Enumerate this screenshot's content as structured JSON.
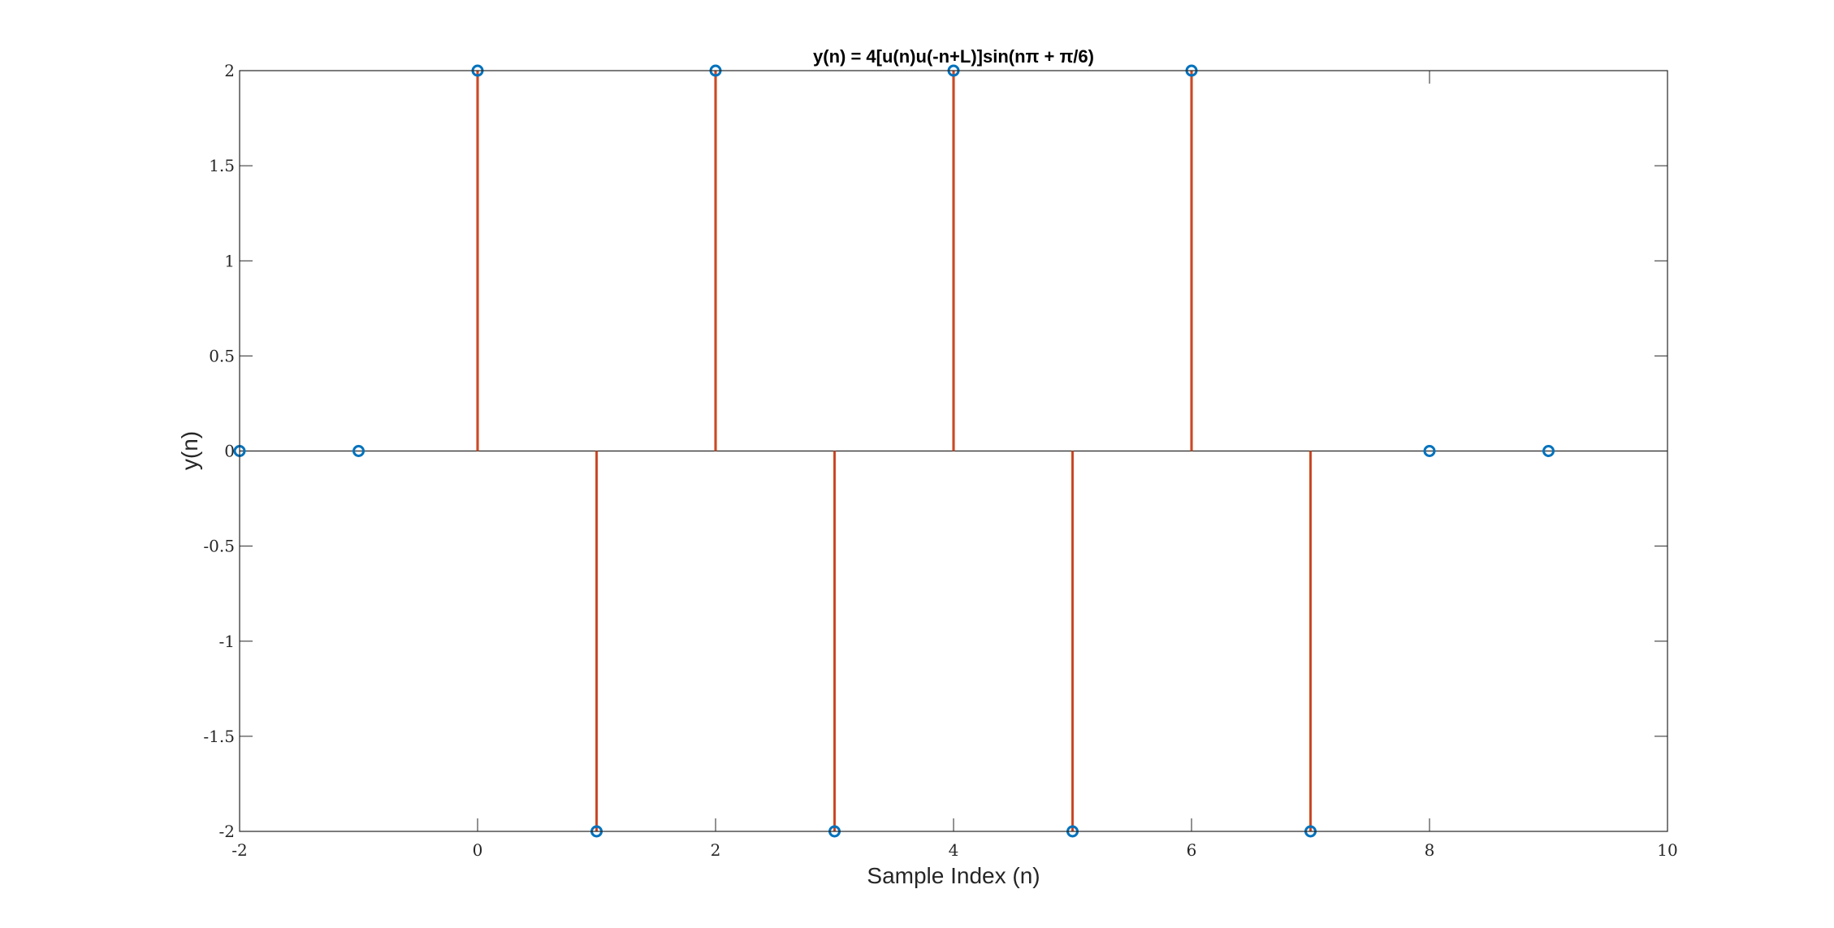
{
  "chart_data": {
    "type": "stem",
    "title": "y(n) = 4[u(n)u(-n+L)]sin(nπ + π/6)",
    "xlabel": "Sample Index (n)",
    "ylabel": "y(n)",
    "xlim": [
      -2,
      10
    ],
    "ylim": [
      -2,
      2
    ],
    "x_ticks": [
      -2,
      0,
      2,
      4,
      6,
      8,
      10
    ],
    "x_tick_labels": [
      "-2",
      "0",
      "2",
      "4",
      "6",
      "8",
      "10"
    ],
    "y_ticks": [
      -2,
      -1.5,
      -1,
      -0.5,
      0,
      0.5,
      1,
      1.5,
      2
    ],
    "y_tick_labels": [
      "-2",
      "-1.5",
      "-1",
      "-0.5",
      "0",
      "0.5",
      "1",
      "1.5",
      "2"
    ],
    "grid": false,
    "series": [
      {
        "x": [
          -2,
          -1,
          0,
          1,
          2,
          3,
          4,
          5,
          6,
          7,
          8,
          9
        ],
        "y": [
          0,
          0,
          2,
          -2,
          2,
          -2,
          2,
          -2,
          2,
          -2,
          0,
          0
        ],
        "stem_color": "#D95319",
        "marker_color": "#0072BD"
      }
    ],
    "colors": {
      "axes": "#262626",
      "stem": "#D95319",
      "marker": "#0072BD",
      "baseline": "#262626"
    }
  }
}
